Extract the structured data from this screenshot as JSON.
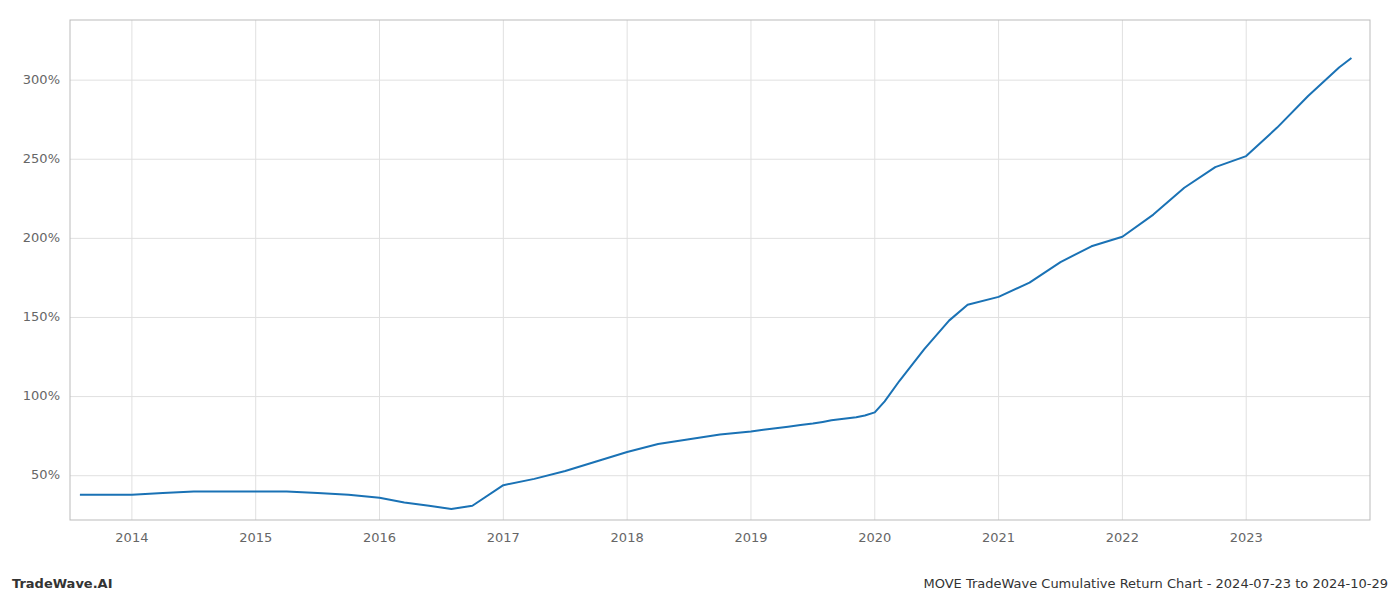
{
  "chart_data": {
    "type": "line",
    "title": "MOVE TradeWave Cumulative Return Chart - 2024-07-23 to 2024-10-29",
    "annotations": [
      "TradeWave.AI"
    ],
    "x": [
      2013.58,
      2014.0,
      2014.25,
      2014.5,
      2014.75,
      2015.0,
      2015.25,
      2015.5,
      2015.75,
      2016.0,
      2016.2,
      2016.4,
      2016.58,
      2016.75,
      2017.0,
      2017.25,
      2017.5,
      2017.75,
      2018.0,
      2018.25,
      2018.5,
      2018.75,
      2019.0,
      2019.1,
      2019.2,
      2019.3,
      2019.4,
      2019.5,
      2019.58,
      2019.65,
      2019.75,
      2019.85,
      2019.92,
      2020.0,
      2020.08,
      2020.2,
      2020.4,
      2020.6,
      2020.75,
      2021.0,
      2021.25,
      2021.5,
      2021.75,
      2022.0,
      2022.25,
      2022.5,
      2022.75,
      2023.0,
      2023.25,
      2023.5,
      2023.75,
      2023.85
    ],
    "series": [
      {
        "color": "#1a72b5",
        "values": [
          38,
          38,
          39,
          40,
          40,
          40,
          40,
          39,
          38,
          36,
          33,
          31,
          29,
          31,
          44,
          48,
          53,
          59,
          65,
          70,
          73,
          76,
          78,
          79,
          80,
          81,
          82,
          83,
          84,
          85,
          86,
          87,
          88,
          90,
          97,
          110,
          130,
          148,
          158,
          163,
          172,
          185,
          195,
          201,
          215,
          232,
          245,
          252,
          270,
          290,
          308,
          314
        ]
      }
    ],
    "xlim": [
      2013.5,
      2024.0
    ],
    "xticks": [
      2014,
      2015,
      2016,
      2017,
      2018,
      2019,
      2020,
      2021,
      2022,
      2023
    ],
    "ylim": [
      22,
      338
    ],
    "yticks": [
      {
        "value": 50,
        "label": "50%"
      },
      {
        "value": 100,
        "label": "100%"
      },
      {
        "value": 150,
        "label": "150%"
      },
      {
        "value": 200,
        "label": "200%"
      },
      {
        "value": 250,
        "label": "250%"
      },
      {
        "value": 300,
        "label": "300%"
      }
    ],
    "grid": true
  }
}
